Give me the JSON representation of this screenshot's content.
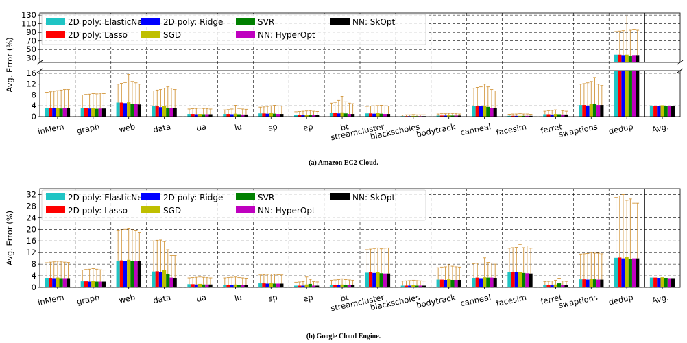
{
  "chart_data": [
    {
      "type": "bar",
      "caption": "(a) Amazon EC2 Cloud.",
      "ylabel": "Avg. Error (%)",
      "lower_ylim": [
        0,
        17
      ],
      "lower_yticks": [
        0,
        4,
        8,
        12,
        16
      ],
      "upper_ylim": [
        20,
        135
      ],
      "upper_yticks": [
        30,
        50,
        70,
        90,
        110,
        130
      ],
      "grid": true,
      "legend_position": "top-left",
      "categories": [
        "inMem",
        "graph",
        "web",
        "data",
        "ua",
        "lu",
        "sp",
        "ep",
        "bt",
        "streamcluster",
        "blackscholes",
        "bodytrack",
        "canneal",
        "facesim",
        "ferret",
        "swaptions",
        "dedup",
        "Avg."
      ],
      "series": [
        {
          "name": "2D poly: ElasticNet",
          "values": [
            3.2,
            3.1,
            5.2,
            3.8,
            1.0,
            1.0,
            1.2,
            0.6,
            1.5,
            1.2,
            0.2,
            0.4,
            4.0,
            0.3,
            0.9,
            4.3,
            38,
            4.1
          ]
        },
        {
          "name": "2D poly: Lasso",
          "values": [
            3.2,
            3.1,
            5.2,
            3.8,
            1.0,
            1.0,
            1.2,
            0.6,
            1.5,
            1.2,
            0.2,
            0.4,
            4.0,
            0.3,
            0.9,
            4.3,
            38,
            4.0
          ]
        },
        {
          "name": "2D poly: Ridge",
          "values": [
            3.1,
            3.0,
            5.0,
            3.5,
            0.9,
            0.9,
            1.1,
            0.5,
            1.2,
            1.1,
            0.2,
            0.4,
            3.8,
            0.3,
            0.8,
            4.1,
            37,
            3.9
          ]
        },
        {
          "name": "SGD",
          "values": [
            3.3,
            3.2,
            5.3,
            3.9,
            1.0,
            1.1,
            1.3,
            0.7,
            1.6,
            1.3,
            0.3,
            0.5,
            4.1,
            0.3,
            1.0,
            4.6,
            38,
            4.2
          ]
        },
        {
          "name": "SVR",
          "values": [
            3.0,
            2.9,
            4.8,
            3.3,
            0.9,
            0.9,
            1.1,
            0.6,
            1.2,
            1.1,
            0.2,
            0.4,
            3.6,
            0.3,
            0.9,
            4.8,
            36,
            4.0
          ]
        },
        {
          "name": "NN: HyperOpt",
          "values": [
            3.1,
            3.0,
            4.6,
            3.2,
            0.9,
            0.8,
            1.0,
            0.5,
            1.0,
            1.0,
            0.2,
            0.4,
            3.2,
            0.3,
            0.8,
            4.3,
            37,
            3.9
          ]
        },
        {
          "name": "NN: SkOpt",
          "values": [
            3.1,
            3.0,
            4.5,
            3.2,
            0.9,
            0.8,
            1.0,
            0.5,
            1.0,
            1.0,
            0.2,
            0.4,
            3.2,
            0.3,
            0.8,
            4.3,
            37,
            3.9
          ]
        }
      ],
      "error_tops": [
        [
          9.0,
          8.0,
          12.0,
          9.5,
          2.8,
          2.5,
          3.5,
          1.8,
          5.0,
          3.8,
          0.6,
          1.0,
          10.5,
          0.9,
          2.0,
          12.0,
          92,
          4.1
        ],
        [
          9.2,
          8.2,
          12.3,
          9.8,
          2.9,
          2.6,
          3.6,
          1.9,
          5.3,
          3.9,
          0.7,
          1.1,
          10.8,
          1.0,
          2.2,
          12.2,
          93,
          4.0
        ],
        [
          9.4,
          8.3,
          12.6,
          10.0,
          3.0,
          2.8,
          3.8,
          2.0,
          6.0,
          4.0,
          0.7,
          1.1,
          11.0,
          1.0,
          2.3,
          12.5,
          94,
          3.9
        ],
        [
          9.6,
          8.5,
          15.6,
          10.5,
          3.1,
          4.2,
          4.0,
          2.1,
          7.5,
          4.1,
          0.8,
          1.2,
          12.0,
          1.1,
          2.5,
          13.0,
          128,
          4.2
        ],
        [
          9.8,
          8.4,
          13.0,
          11.0,
          3.0,
          3.0,
          4.2,
          2.2,
          5.5,
          4.2,
          0.7,
          1.2,
          11.0,
          1.0,
          2.4,
          14.5,
          95,
          4.0
        ],
        [
          10.0,
          8.6,
          12.5,
          10.5,
          2.9,
          2.8,
          4.0,
          2.0,
          5.0,
          4.0,
          0.7,
          1.1,
          10.0,
          1.0,
          2.2,
          12.0,
          96,
          3.9
        ],
        [
          10.0,
          8.5,
          12.0,
          10.0,
          2.8,
          2.7,
          3.9,
          1.9,
          4.8,
          3.9,
          0.7,
          1.0,
          9.5,
          0.9,
          2.0,
          11.5,
          95,
          3.9
        ]
      ]
    },
    {
      "type": "bar",
      "caption": "(b) Google Cloud Engine.",
      "ylabel": "Avg. Error (%)",
      "ylim": [
        0,
        34
      ],
      "yticks": [
        0,
        4,
        8,
        12,
        16,
        20,
        24,
        28,
        32
      ],
      "grid": true,
      "legend_position": "top-left",
      "categories": [
        "inMem",
        "graph",
        "web",
        "data",
        "ua",
        "lu",
        "sp",
        "ep",
        "bt",
        "streamcluster",
        "blackscholes",
        "bodytrack",
        "canneal",
        "facesim",
        "ferret",
        "swaptions",
        "dedup",
        "Avg."
      ],
      "series": [
        {
          "name": "2D poly: ElasticNet",
          "values": [
            3.3,
            2.1,
            9.2,
            5.5,
            1.1,
            0.9,
            1.4,
            0.6,
            0.8,
            5.1,
            0.6,
            2.7,
            3.3,
            5.3,
            0.7,
            2.8,
            10.2,
            3.4
          ]
        },
        {
          "name": "2D poly: Lasso",
          "values": [
            3.3,
            2.1,
            9.3,
            5.6,
            1.1,
            0.9,
            1.4,
            0.6,
            0.8,
            5.2,
            0.6,
            2.7,
            3.4,
            5.3,
            0.7,
            2.8,
            10.3,
            3.4
          ]
        },
        {
          "name": "2D poly: Ridge",
          "values": [
            3.2,
            2.0,
            9.0,
            5.4,
            1.0,
            0.9,
            1.3,
            0.6,
            0.8,
            5.0,
            0.6,
            2.6,
            3.2,
            5.2,
            0.7,
            2.7,
            10.0,
            3.3
          ]
        },
        {
          "name": "SGD",
          "values": [
            3.4,
            2.2,
            9.5,
            5.9,
            1.2,
            1.0,
            1.5,
            1.0,
            1.0,
            5.3,
            0.7,
            2.8,
            3.5,
            5.4,
            1.0,
            2.9,
            10.4,
            3.5
          ]
        },
        {
          "name": "SVR",
          "values": [
            3.2,
            2.0,
            9.0,
            4.6,
            1.0,
            0.9,
            1.3,
            1.2,
            0.8,
            4.9,
            0.6,
            2.6,
            3.4,
            5.0,
            1.4,
            2.8,
            9.8,
            3.3
          ]
        },
        {
          "name": "NN: HyperOpt",
          "values": [
            3.2,
            2.0,
            9.1,
            3.4,
            1.0,
            0.9,
            1.3,
            0.6,
            0.8,
            4.8,
            0.6,
            2.6,
            3.4,
            4.9,
            0.7,
            2.7,
            10.0,
            3.2
          ]
        },
        {
          "name": "NN: SkOpt",
          "values": [
            3.2,
            2.0,
            9.0,
            3.3,
            1.0,
            0.9,
            1.3,
            0.6,
            0.8,
            4.8,
            0.6,
            2.6,
            3.3,
            4.8,
            0.7,
            2.7,
            10.0,
            3.2
          ]
        }
      ],
      "error_tops": [
        [
          8.5,
          6.0,
          19.5,
          16.0,
          3.3,
          3.3,
          4.3,
          1.8,
          2.5,
          13.0,
          2.2,
          6.8,
          8.2,
          13.5,
          2.0,
          11.5,
          31.0,
          3.4
        ],
        [
          8.7,
          6.2,
          19.8,
          16.2,
          3.4,
          3.4,
          4.4,
          1.9,
          2.6,
          13.2,
          2.3,
          7.0,
          8.3,
          13.7,
          2.1,
          11.6,
          31.5,
          3.4
        ],
        [
          8.8,
          6.3,
          20.0,
          16.3,
          3.5,
          3.5,
          4.5,
          2.0,
          2.7,
          13.4,
          2.4,
          7.1,
          8.4,
          13.8,
          2.2,
          11.7,
          32.0,
          3.3
        ],
        [
          9.0,
          6.5,
          20.2,
          15.8,
          3.6,
          3.6,
          4.6,
          3.6,
          3.0,
          13.6,
          2.5,
          7.8,
          10.2,
          14.8,
          2.5,
          12.0,
          30.0,
          3.5
        ],
        [
          8.8,
          6.3,
          19.8,
          13.0,
          3.5,
          3.4,
          4.5,
          2.8,
          2.7,
          13.3,
          2.4,
          7.3,
          8.6,
          13.7,
          3.2,
          11.8,
          30.5,
          3.3
        ],
        [
          8.7,
          6.1,
          19.5,
          11.0,
          3.4,
          3.3,
          4.4,
          2.0,
          2.6,
          13.5,
          2.3,
          7.1,
          8.4,
          14.3,
          2.2,
          11.8,
          29.0,
          3.2
        ],
        [
          8.6,
          6.0,
          19.0,
          11.0,
          3.3,
          3.2,
          4.3,
          1.9,
          2.5,
          13.6,
          2.2,
          7.0,
          8.0,
          13.5,
          2.1,
          11.6,
          29.0,
          3.2
        ]
      ]
    }
  ],
  "colors": {
    "series": [
      "#1fc4c4",
      "#ff0000",
      "#0000ff",
      "#bfbf00",
      "#008000",
      "#bf00bf",
      "#000000"
    ],
    "error_bar": "#d2963c",
    "grid": "#000000"
  },
  "legend_layout": [
    [
      0,
      2,
      4,
      6
    ],
    [
      1,
      3,
      5
    ]
  ]
}
